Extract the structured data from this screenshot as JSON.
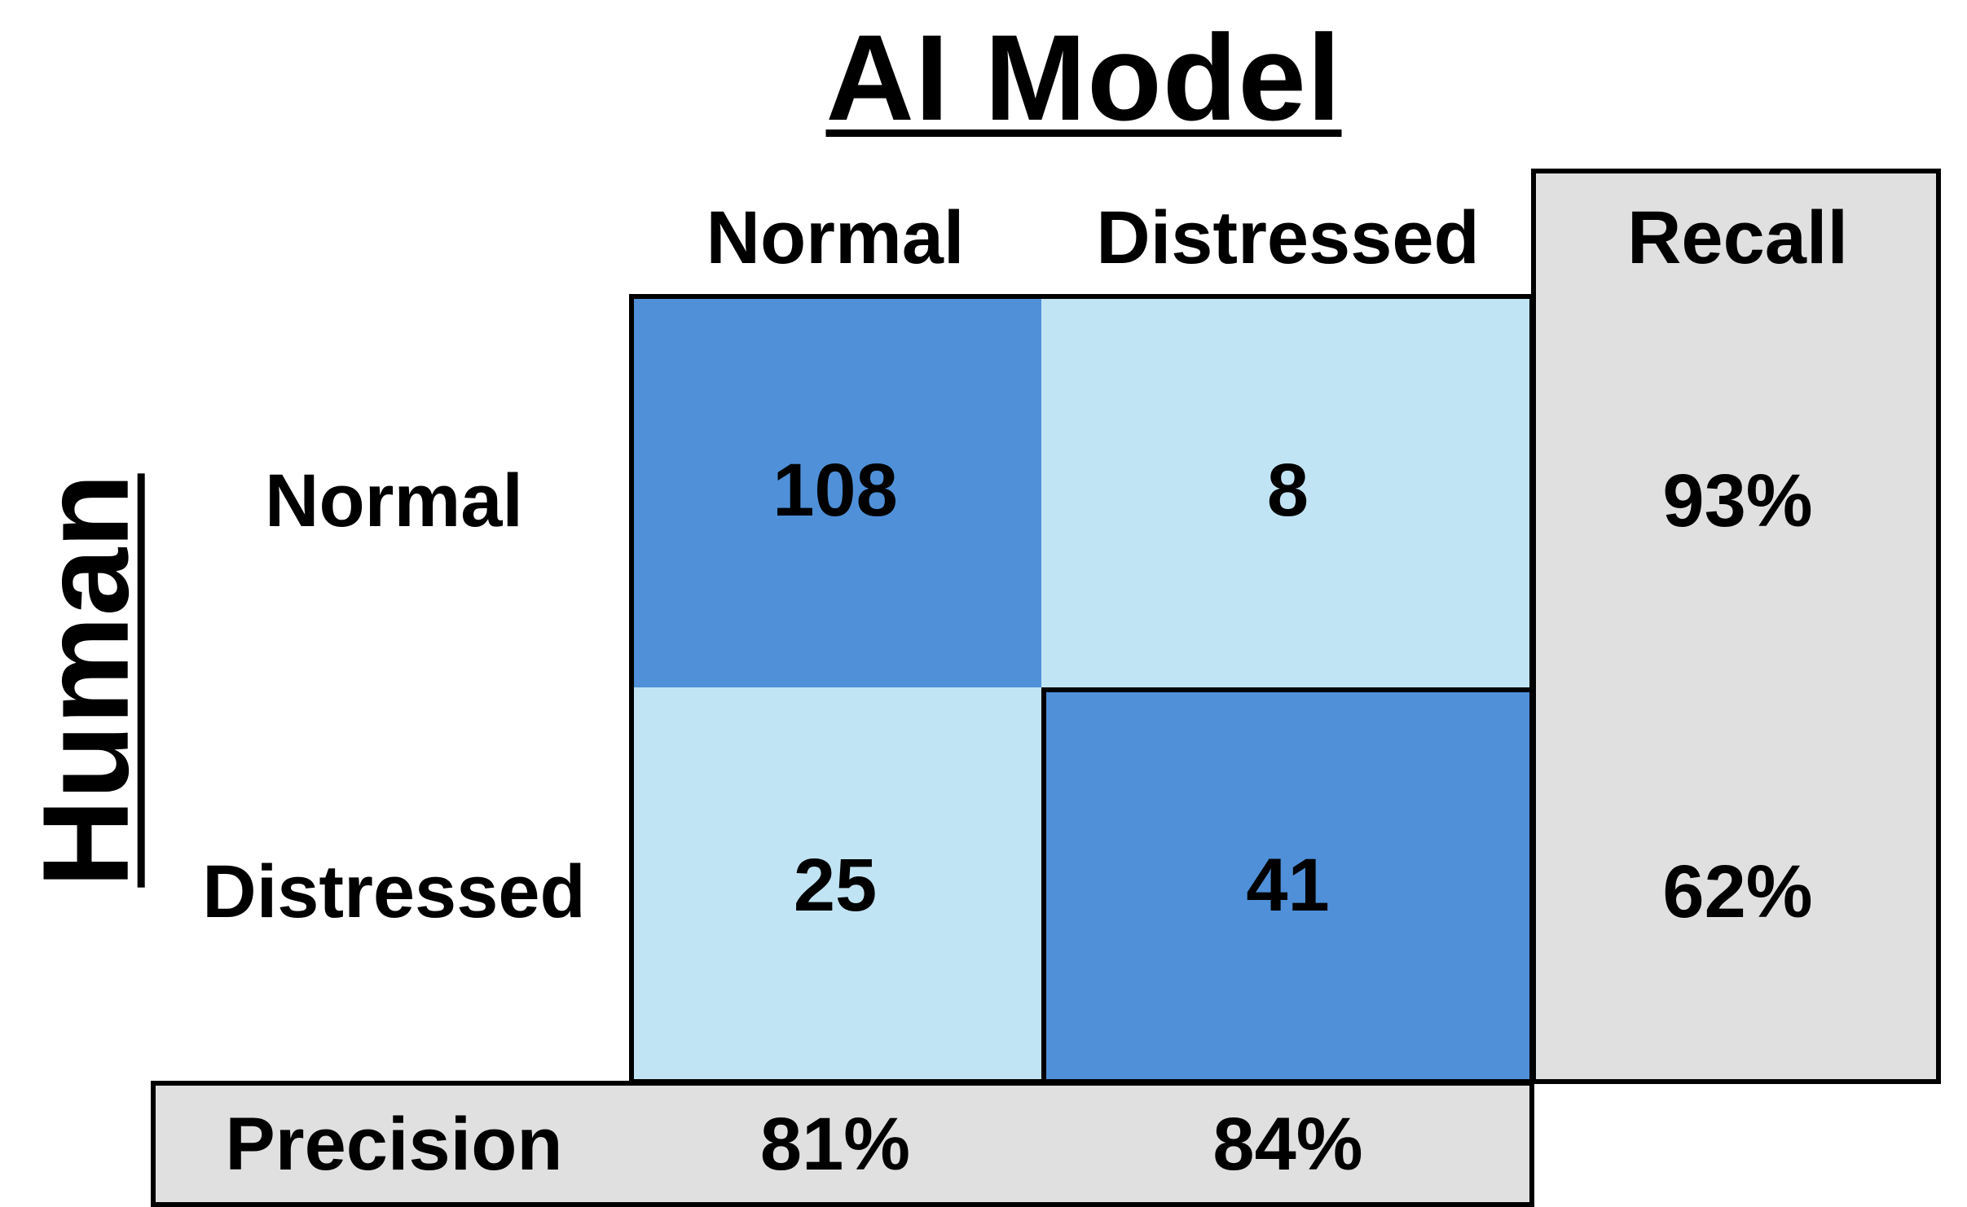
{
  "chart_data": {
    "type": "heatmap",
    "title": "AI Model",
    "xlabel": "AI Model",
    "ylabel": "Human",
    "x_categories": [
      "Normal",
      "Distressed"
    ],
    "y_categories": [
      "Normal",
      "Distressed"
    ],
    "matrix": [
      [
        108,
        8
      ],
      [
        25,
        41
      ]
    ],
    "recall_header": "Recall",
    "recall": [
      "93%",
      "62%"
    ],
    "precision_label": "Precision",
    "precision": [
      "81%",
      "84%"
    ],
    "colors": {
      "high": "#4f90d8",
      "low": "#c1e4f4",
      "summary": "#e0e0e0"
    }
  }
}
